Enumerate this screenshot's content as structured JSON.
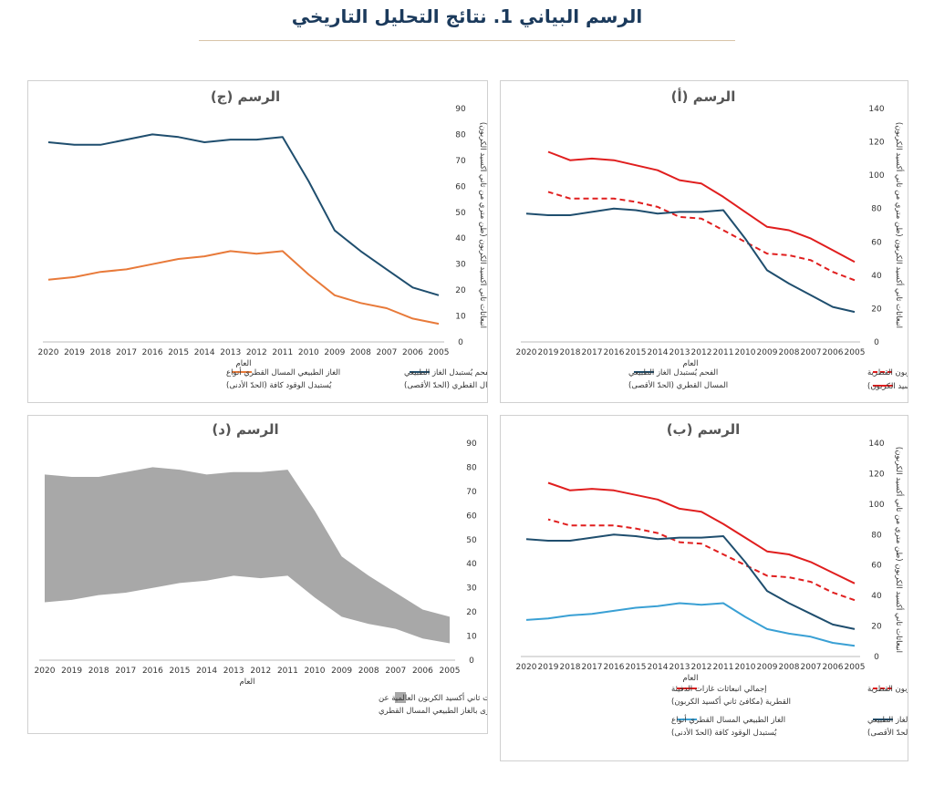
{
  "page_title": "الرسم البياني 1. نتائج التحليل التاريخي",
  "colors": {
    "red": "#e01e1e",
    "navy": "#1f4e6e",
    "orange": "#e87a3a",
    "lightblue": "#3aa0d4",
    "gray": "#a8a8a8",
    "title": "#1b3a5c"
  },
  "chart_data": [
    {
      "id": "a",
      "type": "line",
      "title": "الرسم (أ)",
      "xlabel": "العام",
      "ylabel": "انبعاثات ثاني أكسيد الكربون (طن متري من ثاني أكسيد الكربون)",
      "x": [
        2005,
        2006,
        2007,
        2008,
        2009,
        2010,
        2011,
        2012,
        2013,
        2014,
        2015,
        2016,
        2017,
        2018,
        2019,
        2020
      ],
      "x_axis_reversed": true,
      "y_axis_position": "right",
      "ylim": [
        0,
        140
      ],
      "yticks": [
        0,
        20,
        40,
        60,
        80,
        100,
        120,
        140
      ],
      "series": [
        {
          "name": "إجمالي انبعاثات غازات الدفيئة القطرية (مكافئ ثاني أكسيد الكربون)",
          "color": "#e01e1e",
          "style": "solid",
          "values": [
            48,
            55,
            62,
            67,
            69,
            78,
            87,
            95,
            97,
            103,
            106,
            109,
            110,
            109,
            114,
            null
          ]
        },
        {
          "name": "إجمالي انبعاثات ثاني أكسيد الكربون القطرية",
          "color": "#e01e1e",
          "style": "dashed",
          "values": [
            37,
            42,
            49,
            52,
            53,
            60,
            67,
            74,
            75,
            81,
            84,
            86,
            86,
            86,
            90,
            null
          ]
        },
        {
          "name": "الفحم يُستبدل الغاز الطبيعي المسال القطري (الحدّ الأقصى)",
          "color": "#1f4e6e",
          "style": "solid",
          "values": [
            18,
            21,
            28,
            35,
            43,
            62,
            79,
            78,
            78,
            77,
            79,
            80,
            78,
            76,
            76,
            77
          ]
        }
      ],
      "legend": [
        {
          "text": "إجمالي انبعاثات ثاني أكسيد الكربون القطرية",
          "series": 1
        },
        {
          "text": "إجمالي انبعاثات غازات الدفيئة القطرية (مكافئ ثاني أكسيد الكربون)",
          "series": 0
        },
        {
          "text": "الفحم يُستبدل الغاز الطبيعي المسال القطري (الحدّ الأقصى)",
          "series": 2
        }
      ],
      "legend_position": "bottom"
    },
    {
      "id": "b",
      "type": "line",
      "title": "الرسم (ب)",
      "xlabel": "العام",
      "ylabel": "انبعاثات ثاني أكسيد الكربون (طن متري من ثاني أكسيد الكربون)",
      "x": [
        2005,
        2006,
        2007,
        2008,
        2009,
        2010,
        2011,
        2012,
        2013,
        2014,
        2015,
        2016,
        2017,
        2018,
        2019,
        2020
      ],
      "x_axis_reversed": true,
      "y_axis_position": "right",
      "ylim": [
        0,
        140
      ],
      "yticks": [
        0,
        20,
        40,
        60,
        80,
        100,
        120,
        140
      ],
      "series": [
        {
          "name": "إجمالي انبعاثات غازات الدفيئة القطرية (مكافئ ثاني أكسيد الكربون)",
          "color": "#e01e1e",
          "style": "solid",
          "values": [
            48,
            55,
            62,
            67,
            69,
            78,
            87,
            95,
            97,
            103,
            106,
            109,
            110,
            109,
            114,
            null
          ]
        },
        {
          "name": "انبعاثات ثاني أكسيد الكربون القطرية",
          "color": "#e01e1e",
          "style": "dashed",
          "values": [
            37,
            42,
            49,
            52,
            53,
            60,
            67,
            74,
            75,
            81,
            84,
            86,
            86,
            86,
            90,
            null
          ]
        },
        {
          "name": "الفحم يُستبدل الغاز الطبيعي المسال القطري (الحدّ الأقصى)",
          "color": "#1f4e6e",
          "style": "solid",
          "values": [
            18,
            21,
            28,
            35,
            43,
            62,
            79,
            78,
            78,
            77,
            79,
            80,
            78,
            76,
            76,
            77
          ]
        },
        {
          "name": "الغاز الطبيعي المسال القطري يُستبدل أنواع الوقود كافة (الحدّ الأدنى)",
          "color": "#3aa0d4",
          "style": "solid",
          "values": [
            7,
            9,
            13,
            15,
            18,
            26,
            35,
            34,
            35,
            33,
            32,
            30,
            28,
            27,
            25,
            24
          ]
        }
      ],
      "legend": [
        {
          "text": "انبعاثات ثاني أكسيد الكربون القطرية",
          "series": 1
        },
        {
          "text": "إجمالي انبعاثات غازات الدفيئة القطرية (مكافئ ثاني أكسيد الكربون)",
          "series": 0
        },
        {
          "text": "الفحم يُستبدل الغاز الطبيعي المسال القطري (الحدّ الأقصى)",
          "series": 2
        },
        {
          "text": "الغاز الطبيعي المسال القطري يُستبدل أنواع الوقود كافة (الحدّ الأدنى)",
          "series": 3
        }
      ],
      "legend_position": "bottom"
    },
    {
      "id": "c",
      "type": "line",
      "title": "الرسم (ج)",
      "xlabel": "العام",
      "ylabel": "انبعاثات ثاني أكسيد الكربون (طن متري من ثاني أكسيد الكربون)",
      "x": [
        2005,
        2006,
        2007,
        2008,
        2009,
        2010,
        2011,
        2012,
        2013,
        2014,
        2015,
        2016,
        2017,
        2018,
        2019,
        2020
      ],
      "x_axis_reversed": true,
      "y_axis_position": "right",
      "ylim": [
        0,
        90
      ],
      "yticks": [
        0,
        10,
        20,
        30,
        40,
        50,
        60,
        70,
        80,
        90
      ],
      "series": [
        {
          "name": "الفحم يُستبدل الغاز الطبيعي المسال القطري (الحدّ الأقصى)",
          "color": "#1f4e6e",
          "style": "solid",
          "values": [
            18,
            21,
            28,
            35,
            43,
            62,
            79,
            78,
            78,
            77,
            79,
            80,
            78,
            76,
            76,
            77
          ]
        },
        {
          "name": "الغاز الطبيعي المسال القطري يُستبدل أنواع الوقود كافة (الحدّ الأدنى)",
          "color": "#e87a3a",
          "style": "solid",
          "values": [
            7,
            9,
            13,
            15,
            18,
            26,
            35,
            34,
            35,
            33,
            32,
            30,
            28,
            27,
            25,
            24
          ]
        }
      ],
      "legend": [
        {
          "text": "الفحم يُستبدل الغاز الطبيعي المسال القطري (الحدّ الأقصى)",
          "series": 0
        },
        {
          "text": "الغاز الطبيعي المسال القطري يُستبدل أنواع الوقود كافة (الحدّ الأدنى)",
          "series": 1
        }
      ],
      "legend_position": "bottom"
    },
    {
      "id": "d",
      "type": "area",
      "title": "الرسم (د)",
      "xlabel": "العام",
      "ylabel": "انبعاثات ثاني أكسيد الكربون (طن متري من ثاني أكسيد الكربون)",
      "x": [
        2005,
        2006,
        2007,
        2008,
        2009,
        2010,
        2011,
        2012,
        2013,
        2014,
        2015,
        2016,
        2017,
        2018,
        2019,
        2020
      ],
      "x_axis_reversed": true,
      "y_axis_position": "right",
      "ylim": [
        0,
        90
      ],
      "yticks": [
        0,
        10,
        20,
        30,
        40,
        50,
        60,
        70,
        80,
        90
      ],
      "band": {
        "name": "نطاق التخفيضات المرجّحة في انبعاثات ثاني أكسيد الكربون العالمية الناجمة عن استبدال الفحم وأنواع الوقود الأخرى بالغاز الطبيعي المسال القطري",
        "color": "#a8a8a8",
        "upper": [
          18,
          21,
          28,
          35,
          43,
          62,
          79,
          78,
          78,
          77,
          79,
          80,
          78,
          76,
          76,
          77
        ],
        "lower": [
          7,
          9,
          13,
          15,
          18,
          26,
          35,
          34,
          35,
          33,
          32,
          30,
          28,
          27,
          25,
          24
        ]
      },
      "legend": [
        {
          "text": "نطاق التخفيضات المرجّحة في انبعاثات ثاني أكسيد الكربون العالمية الناجمة عن استبدال الفحم وأنواع الوقود الأخرى بالغاز الطبيعي المسال القطري",
          "band": true
        }
      ],
      "legend_position": "bottom"
    }
  ]
}
